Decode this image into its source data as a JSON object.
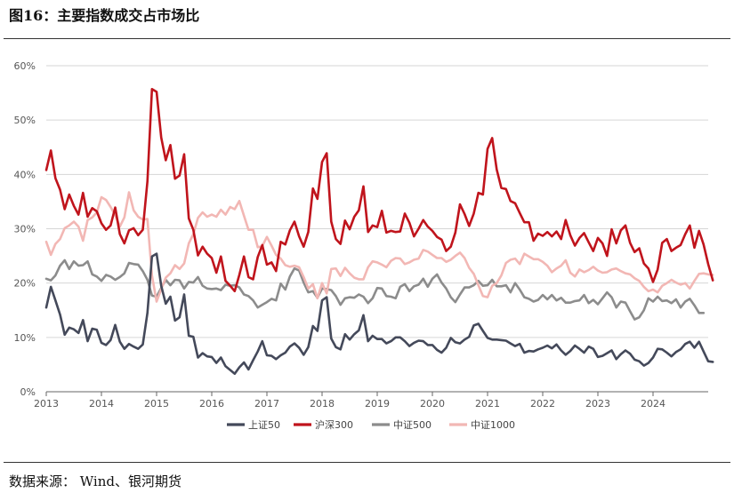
{
  "page": {
    "title": "图16：主要指数成交占市场比",
    "source": "数据来源：   Wind、银河期货"
  },
  "chart_data": {
    "type": "line",
    "title": "图16：主要指数成交占市场比",
    "xlabel": "",
    "ylabel": "",
    "ylim": [
      0,
      60
    ],
    "xlim": [
      2013,
      2025
    ],
    "yticks": [
      "0%",
      "10%",
      "20%",
      "30%",
      "40%",
      "50%",
      "60%"
    ],
    "xticks": [
      "2013",
      "2014",
      "2015",
      "2016",
      "2017",
      "2018",
      "2019",
      "2020",
      "2021",
      "2022",
      "2023",
      "2024"
    ],
    "grid": true,
    "legend_position": "bottom",
    "x_start": 2013.0,
    "x_step": 0.0833333,
    "series": [
      {
        "name": "上证50",
        "color": "#44495a",
        "values": [
          15.5,
          19.3,
          16.8,
          14.2,
          10.5,
          11.8,
          11.5,
          10.8,
          13.2,
          9.3,
          11.6,
          11.4,
          9.0,
          8.6,
          9.5,
          12.3,
          9.2,
          7.9,
          8.8,
          8.3,
          7.9,
          8.7,
          14.5,
          24.9,
          25.4,
          19.5,
          16.2,
          17.5,
          13.1,
          13.7,
          17.9,
          10.3,
          10.1,
          6.3,
          7.1,
          6.5,
          6.4,
          5.3,
          6.3,
          4.7,
          4.0,
          3.3,
          4.5,
          5.4,
          4.1,
          5.8,
          7.4,
          9.3,
          6.7,
          6.6,
          6.0,
          6.7,
          7.2,
          8.3,
          8.9,
          8.1,
          6.8,
          8.2,
          12.1,
          11.2,
          16.8,
          17.4,
          9.8,
          8.2,
          7.8,
          10.6,
          9.6,
          10.6,
          11.3,
          14.1,
          9.3,
          10.3,
          9.7,
          9.7,
          8.9,
          9.3,
          10.0,
          10.0,
          9.3,
          8.4,
          9.0,
          9.4,
          9.3,
          8.6,
          8.6,
          7.7,
          7.2,
          8.1,
          9.9,
          9.1,
          8.9,
          9.6,
          10.1,
          12.2,
          12.5,
          11.2,
          9.9,
          9.6,
          9.6,
          9.5,
          9.4,
          8.9,
          8.4,
          8.8,
          7.2,
          7.5,
          7.4,
          7.8,
          8.1,
          8.5,
          8.0,
          8.7,
          7.6,
          6.8,
          7.5,
          8.5,
          7.9,
          7.2,
          8.3,
          7.9,
          6.4,
          6.6,
          7.1,
          7.6,
          6.0,
          6.9,
          7.6,
          7.0,
          5.9,
          5.6,
          4.8,
          5.3,
          6.3,
          7.9,
          7.8,
          7.2,
          6.5,
          7.3,
          7.8,
          8.8,
          9.2,
          8.1,
          9.2,
          7.4,
          5.6,
          5.5
        ]
      },
      {
        "name": "沪深300",
        "color": "#c0141c",
        "values": [
          40.8,
          44.4,
          39.3,
          37.2,
          33.6,
          36.3,
          34.2,
          32.6,
          36.6,
          32.2,
          33.8,
          33.2,
          31.0,
          29.8,
          30.6,
          33.9,
          29.0,
          27.3,
          29.7,
          30.1,
          28.8,
          29.8,
          38.7,
          55.7,
          55.2,
          46.8,
          42.6,
          45.4,
          39.2,
          39.8,
          43.7,
          31.9,
          29.8,
          25.1,
          26.7,
          25.4,
          24.6,
          21.9,
          24.9,
          20.4,
          19.5,
          18.5,
          21.5,
          24.9,
          21.1,
          20.7,
          24.8,
          27.0,
          23.4,
          23.8,
          22.2,
          27.6,
          27.1,
          29.7,
          31.3,
          28.6,
          26.7,
          29.4,
          37.4,
          35.5,
          42.3,
          43.9,
          31.3,
          28.1,
          27.2,
          31.5,
          29.9,
          32.2,
          33.4,
          37.8,
          29.4,
          30.6,
          30.3,
          33.3,
          29.3,
          29.6,
          29.4,
          29.5,
          32.8,
          31.1,
          28.6,
          30.0,
          31.6,
          30.4,
          29.6,
          28.5,
          28.0,
          25.9,
          26.7,
          29.3,
          34.5,
          32.7,
          30.5,
          32.8,
          36.6,
          36.3,
          44.7,
          46.7,
          40.9,
          37.5,
          37.3,
          35.1,
          34.7,
          32.9,
          31.2,
          31.2,
          27.8,
          29.1,
          28.7,
          29.4,
          28.6,
          29.5,
          28.1,
          31.6,
          28.8,
          26.9,
          28.3,
          29.2,
          27.5,
          25.9,
          28.3,
          27.3,
          25.0,
          29.9,
          27.3,
          29.7,
          30.6,
          27.4,
          25.7,
          26.4,
          23.6,
          22.7,
          20.2,
          22.5,
          27.4,
          28.1,
          25.9,
          26.5,
          27.0,
          29.0,
          30.6,
          26.5,
          29.6,
          27.1,
          23.5,
          20.5
        ]
      },
      {
        "name": "中证500",
        "color": "#8c8c8c",
        "values": [
          20.8,
          20.5,
          21.4,
          23.2,
          24.2,
          22.6,
          24.0,
          23.2,
          23.3,
          24.0,
          21.6,
          21.2,
          20.4,
          21.5,
          21.2,
          20.6,
          21.1,
          21.8,
          23.7,
          23.5,
          23.4,
          22.2,
          20.6,
          17.7,
          17.5,
          19.1,
          20.6,
          19.6,
          20.6,
          20.5,
          19.0,
          20.2,
          20.1,
          21.1,
          19.5,
          19.0,
          18.9,
          19.0,
          18.7,
          19.7,
          19.5,
          19.6,
          19.2,
          17.9,
          17.6,
          16.8,
          15.5,
          16.0,
          16.5,
          17.1,
          16.8,
          19.9,
          18.8,
          21.2,
          22.7,
          22.3,
          20.1,
          18.3,
          18.5,
          17.3,
          19.0,
          18.9,
          18.7,
          17.6,
          16.0,
          17.2,
          17.4,
          17.3,
          17.9,
          17.5,
          16.3,
          17.2,
          19.1,
          19.0,
          17.6,
          17.5,
          17.2,
          19.3,
          19.8,
          18.5,
          19.4,
          19.7,
          20.8,
          19.3,
          20.8,
          21.6,
          20.1,
          19.0,
          17.4,
          16.5,
          17.9,
          19.2,
          19.2,
          19.6,
          20.4,
          19.5,
          19.6,
          20.6,
          19.4,
          19.4,
          19.6,
          18.3,
          20.0,
          18.8,
          17.4,
          17.1,
          16.6,
          16.9,
          17.8,
          17.0,
          17.8,
          16.8,
          17.3,
          16.4,
          16.4,
          16.7,
          16.8,
          17.8,
          16.3,
          16.9,
          16.1,
          17.2,
          18.3,
          17.4,
          15.5,
          16.6,
          16.4,
          14.8,
          13.3,
          13.7,
          15.0,
          17.2,
          16.6,
          17.5,
          16.7,
          16.8,
          16.3,
          17.0,
          15.5,
          16.6,
          17.1,
          15.9,
          14.5,
          14.5
        ]
      },
      {
        "name": "中证1000",
        "color": "#f2b7b4",
        "values": [
          27.6,
          25.2,
          27.2,
          28.1,
          30.1,
          30.6,
          31.3,
          30.4,
          27.8,
          31.6,
          32.1,
          33.0,
          35.8,
          35.3,
          34.0,
          32.5,
          30.4,
          32.1,
          36.7,
          33.4,
          32.2,
          31.7,
          31.8,
          21.4,
          16.6,
          18.9,
          21.0,
          21.8,
          23.3,
          22.6,
          23.6,
          27.3,
          29.0,
          32.0,
          33.0,
          32.2,
          32.6,
          32.2,
          33.5,
          32.6,
          34.0,
          33.6,
          35.1,
          32.4,
          29.8,
          29.8,
          26.6,
          26.8,
          28.5,
          26.9,
          25.2,
          24.5,
          23.3,
          23.0,
          23.2,
          22.9,
          21.1,
          19.0,
          19.8,
          17.2,
          20.0,
          18.1,
          22.6,
          22.7,
          21.3,
          22.8,
          21.8,
          21.0,
          20.7,
          20.7,
          22.9,
          24.0,
          23.8,
          23.4,
          22.9,
          24.1,
          24.6,
          24.5,
          23.5,
          23.8,
          24.3,
          24.5,
          26.1,
          25.8,
          25.2,
          24.6,
          24.6,
          23.9,
          24.3,
          25.0,
          25.6,
          24.6,
          22.8,
          21.7,
          19.6,
          17.6,
          17.4,
          19.5,
          20.0,
          21.4,
          23.7,
          24.3,
          24.5,
          23.5,
          25.4,
          24.9,
          24.4,
          24.4,
          23.9,
          23.2,
          22.0,
          22.7,
          23.2,
          24.2,
          21.9,
          21.2,
          22.5,
          22.0,
          22.4,
          23.0,
          22.3,
          21.9,
          22.0,
          22.5,
          22.7,
          22.2,
          21.8,
          21.6,
          20.9,
          20.4,
          19.3,
          18.5,
          18.8,
          18.3,
          19.5,
          20.0,
          20.6,
          20.1,
          19.7,
          20.0,
          19.0,
          20.4,
          21.7,
          21.8,
          21.6,
          21.5
        ]
      }
    ]
  }
}
